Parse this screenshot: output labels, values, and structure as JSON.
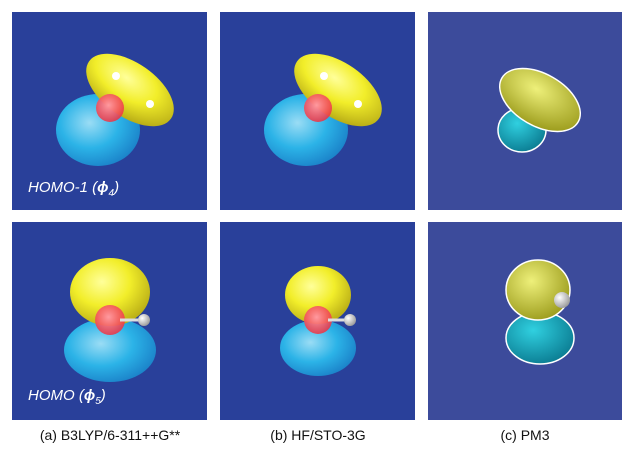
{
  "panels": {
    "row_labels": [
      {
        "prefix": "HOMO-1 (",
        "symbol": "ϕ",
        "subscript": "4",
        "suffix": ")"
      },
      {
        "prefix": "HOMO (",
        "symbol": "ϕ",
        "subscript": "5",
        "suffix": ")"
      }
    ],
    "captions": [
      "(a) B3LYP/6-311++G**",
      "(b) HF/STO-3G",
      "(c) PM3"
    ]
  }
}
